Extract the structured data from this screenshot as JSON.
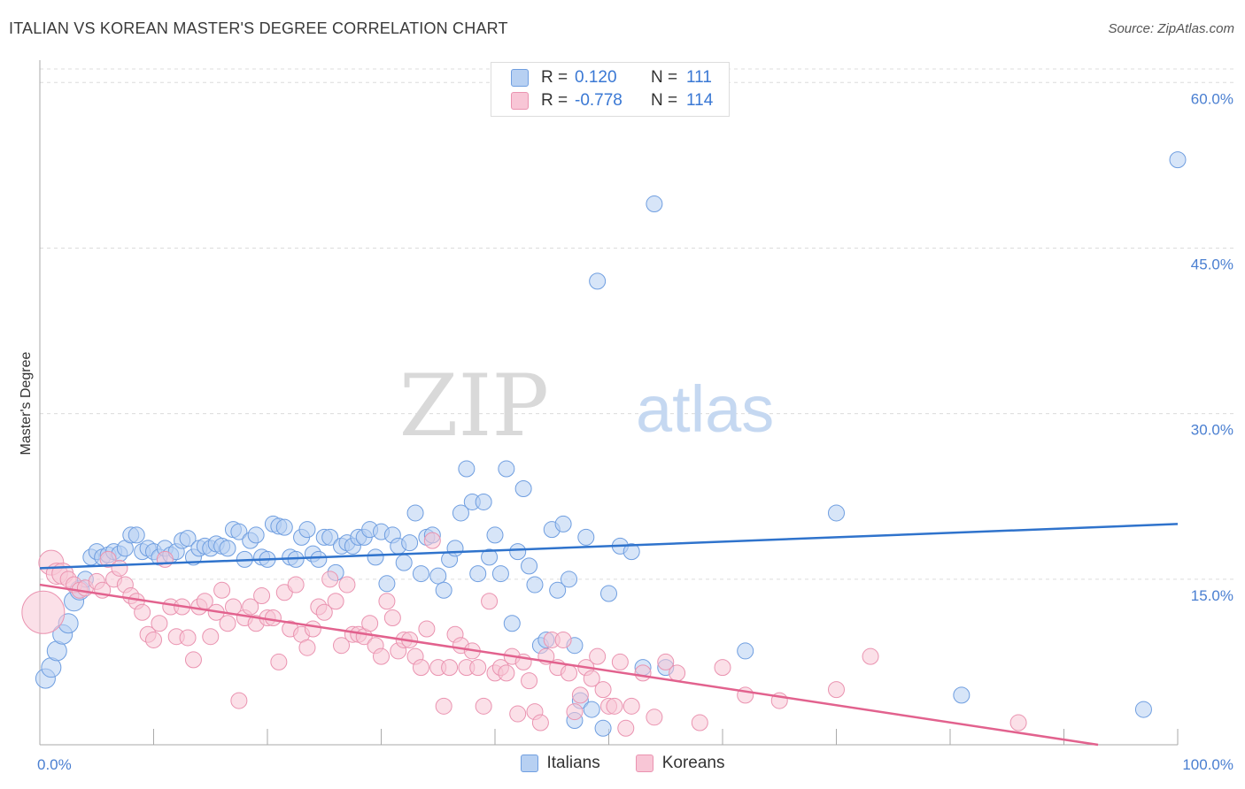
{
  "header": {
    "title": "ITALIAN VS KOREAN MASTER'S DEGREE CORRELATION CHART",
    "source": "Source: ZipAtlas.com"
  },
  "watermark": {
    "zip": "ZIP",
    "atlas": "atlas"
  },
  "legend": {
    "rows": [
      {
        "swatch_fill": "#b7d0f2",
        "swatch_stroke": "#6f9ee0",
        "r_label": "R =",
        "r_value": "0.120",
        "n_label": "N =",
        "n_value": "111"
      },
      {
        "swatch_fill": "#f8c6d6",
        "swatch_stroke": "#ea93b0",
        "r_label": "R =",
        "r_value": "-0.778",
        "n_label": "N =",
        "n_value": "114"
      }
    ]
  },
  "bottom_legend": [
    {
      "label": "Italians",
      "fill": "#b7d0f2",
      "stroke": "#6f9ee0"
    },
    {
      "label": "Koreans",
      "fill": "#f8c6d6",
      "stroke": "#ea93b0"
    }
  ],
  "chart_data": {
    "type": "scatter",
    "ylabel": "Master's Degree",
    "xlim": [
      0,
      100
    ],
    "ylim": [
      0,
      60
    ],
    "y_ticks": [
      {
        "value": 15,
        "label": "15.0%"
      },
      {
        "value": 30,
        "label": "30.0%"
      },
      {
        "value": 45,
        "label": "45.0%"
      },
      {
        "value": 60,
        "label": "60.0%"
      }
    ],
    "x_tick_labels": [
      {
        "value": 0,
        "label": "0.0%"
      },
      {
        "value": 100,
        "label": "100.0%"
      }
    ],
    "grid": true,
    "series": [
      {
        "name": "Italians",
        "color": "#6f9ee0",
        "fill": "#b7d0f2",
        "trend": {
          "x": [
            0,
            100
          ],
          "y": [
            16.0,
            20.0
          ],
          "color": "#2f73cc"
        },
        "points": [
          [
            0.5,
            6.0
          ],
          [
            1,
            7.0
          ],
          [
            1.5,
            8.5
          ],
          [
            2,
            10.0
          ],
          [
            2.5,
            11.0
          ],
          [
            3,
            13.0
          ],
          [
            3.5,
            14.0
          ],
          [
            4,
            15.0
          ],
          [
            4.5,
            17.0
          ],
          [
            5,
            17.5
          ],
          [
            5.5,
            17.0
          ],
          [
            6,
            17.2
          ],
          [
            6.5,
            17.5
          ],
          [
            7,
            17.3
          ],
          [
            7.5,
            17.8
          ],
          [
            8,
            19.0
          ],
          [
            8.5,
            19.0
          ],
          [
            9,
            17.5
          ],
          [
            9.5,
            17.8
          ],
          [
            10,
            17.5
          ],
          [
            10.5,
            17.0
          ],
          [
            11,
            17.8
          ],
          [
            11.5,
            17.2
          ],
          [
            12,
            17.5
          ],
          [
            12.5,
            18.5
          ],
          [
            13,
            18.7
          ],
          [
            13.5,
            17.0
          ],
          [
            14,
            17.8
          ],
          [
            14.5,
            18.0
          ],
          [
            15,
            17.8
          ],
          [
            15.5,
            18.2
          ],
          [
            16,
            18.0
          ],
          [
            16.5,
            17.8
          ],
          [
            17,
            19.5
          ],
          [
            17.5,
            19.3
          ],
          [
            18,
            16.8
          ],
          [
            18.5,
            18.5
          ],
          [
            19,
            19.0
          ],
          [
            19.5,
            17.0
          ],
          [
            20,
            16.8
          ],
          [
            20.5,
            20.0
          ],
          [
            21,
            19.8
          ],
          [
            21.5,
            19.7
          ],
          [
            22,
            17.0
          ],
          [
            22.5,
            16.8
          ],
          [
            23,
            18.8
          ],
          [
            23.5,
            19.5
          ],
          [
            24,
            17.3
          ],
          [
            24.5,
            16.8
          ],
          [
            25,
            18.8
          ],
          [
            25.5,
            18.8
          ],
          [
            26,
            15.6
          ],
          [
            26.5,
            18.0
          ],
          [
            27,
            18.3
          ],
          [
            27.5,
            18.0
          ],
          [
            28,
            18.8
          ],
          [
            28.5,
            18.8
          ],
          [
            29,
            19.5
          ],
          [
            29.5,
            17.0
          ],
          [
            30,
            19.3
          ],
          [
            30.5,
            14.6
          ],
          [
            31,
            19.0
          ],
          [
            31.5,
            18.0
          ],
          [
            32,
            16.5
          ],
          [
            32.5,
            18.3
          ],
          [
            33,
            21.0
          ],
          [
            33.5,
            15.5
          ],
          [
            34,
            18.8
          ],
          [
            34.5,
            19.0
          ],
          [
            35,
            15.3
          ],
          [
            35.5,
            14.0
          ],
          [
            36,
            16.8
          ],
          [
            36.5,
            17.8
          ],
          [
            37,
            21.0
          ],
          [
            37.5,
            25.0
          ],
          [
            38,
            22.0
          ],
          [
            38.5,
            15.5
          ],
          [
            39,
            22.0
          ],
          [
            39.5,
            17.0
          ],
          [
            40,
            19.0
          ],
          [
            40.5,
            15.5
          ],
          [
            41,
            25.0
          ],
          [
            41.5,
            11.0
          ],
          [
            42,
            17.5
          ],
          [
            42.5,
            23.2
          ],
          [
            43,
            16.2
          ],
          [
            43.5,
            14.5
          ],
          [
            44,
            9.0
          ],
          [
            44.5,
            9.5
          ],
          [
            45,
            19.5
          ],
          [
            45.5,
            14.0
          ],
          [
            46,
            20.0
          ],
          [
            46.5,
            15.0
          ],
          [
            47,
            9.0
          ],
          [
            47.5,
            4.0
          ],
          [
            48,
            18.8
          ],
          [
            48.5,
            3.2
          ],
          [
            49,
            42.0
          ],
          [
            49.5,
            1.5
          ],
          [
            50,
            13.7
          ],
          [
            51,
            18.0
          ],
          [
            52,
            17.5
          ],
          [
            53,
            7.0
          ],
          [
            54,
            49.0
          ],
          [
            55,
            7.0
          ],
          [
            62,
            8.5
          ],
          [
            70,
            21.0
          ],
          [
            81,
            4.5
          ],
          [
            97,
            3.2
          ],
          [
            100,
            53.0
          ],
          [
            47.0,
            2.2
          ]
        ]
      },
      {
        "name": "Koreans",
        "color": "#ea93b0",
        "fill": "#f8c6d6",
        "trend": {
          "x": [
            0,
            93
          ],
          "y": [
            14.5,
            0
          ],
          "color": "#e2628e"
        },
        "points": [
          [
            0.3,
            12.0
          ],
          [
            1,
            16.5
          ],
          [
            1.5,
            15.5
          ],
          [
            2,
            15.5
          ],
          [
            2.5,
            15.0
          ],
          [
            3,
            14.5
          ],
          [
            3.5,
            14.0
          ],
          [
            4,
            14.2
          ],
          [
            5,
            14.8
          ],
          [
            5.5,
            14.0
          ],
          [
            6,
            16.8
          ],
          [
            6.5,
            15.0
          ],
          [
            7,
            16.0
          ],
          [
            7.5,
            14.5
          ],
          [
            8,
            13.5
          ],
          [
            8.5,
            13.0
          ],
          [
            9,
            12.0
          ],
          [
            9.5,
            10.0
          ],
          [
            10,
            9.5
          ],
          [
            10.5,
            11.0
          ],
          [
            11,
            16.8
          ],
          [
            11.5,
            12.5
          ],
          [
            12,
            9.8
          ],
          [
            12.5,
            12.5
          ],
          [
            13,
            9.7
          ],
          [
            13.5,
            7.7
          ],
          [
            14,
            12.5
          ],
          [
            14.5,
            13.0
          ],
          [
            15,
            9.8
          ],
          [
            15.5,
            12.0
          ],
          [
            16,
            14.0
          ],
          [
            16.5,
            11.0
          ],
          [
            17,
            12.5
          ],
          [
            17.5,
            4.0
          ],
          [
            18,
            11.5
          ],
          [
            18.5,
            12.5
          ],
          [
            19,
            11.0
          ],
          [
            19.5,
            13.5
          ],
          [
            20,
            11.5
          ],
          [
            20.5,
            11.5
          ],
          [
            21,
            7.5
          ],
          [
            21.5,
            13.8
          ],
          [
            22,
            10.5
          ],
          [
            22.5,
            14.5
          ],
          [
            23,
            10.0
          ],
          [
            23.5,
            8.8
          ],
          [
            24,
            10.5
          ],
          [
            24.5,
            12.5
          ],
          [
            25,
            12.0
          ],
          [
            25.5,
            15.0
          ],
          [
            26,
            13.0
          ],
          [
            26.5,
            9.0
          ],
          [
            27,
            14.5
          ],
          [
            27.5,
            10.0
          ],
          [
            28,
            10.0
          ],
          [
            28.5,
            9.8
          ],
          [
            29,
            11.0
          ],
          [
            29.5,
            9.0
          ],
          [
            30,
            8.0
          ],
          [
            30.5,
            13.0
          ],
          [
            31,
            11.5
          ],
          [
            31.5,
            8.5
          ],
          [
            32,
            9.5
          ],
          [
            32.5,
            9.5
          ],
          [
            33,
            8.0
          ],
          [
            33.5,
            7.0
          ],
          [
            34,
            10.5
          ],
          [
            34.5,
            18.5
          ],
          [
            35,
            7.0
          ],
          [
            35.5,
            3.5
          ],
          [
            36,
            7.0
          ],
          [
            36.5,
            10.0
          ],
          [
            37,
            9.0
          ],
          [
            37.5,
            7.0
          ],
          [
            38,
            8.5
          ],
          [
            38.5,
            7.0
          ],
          [
            39,
            3.5
          ],
          [
            39.5,
            13.0
          ],
          [
            40,
            6.5
          ],
          [
            40.5,
            7.0
          ],
          [
            41,
            6.5
          ],
          [
            41.5,
            8.0
          ],
          [
            42,
            2.8
          ],
          [
            42.5,
            7.5
          ],
          [
            43,
            5.8
          ],
          [
            43.5,
            3.0
          ],
          [
            44,
            2.0
          ],
          [
            44.5,
            8.0
          ],
          [
            45,
            9.5
          ],
          [
            45.5,
            7.0
          ],
          [
            46,
            9.5
          ],
          [
            46.5,
            6.5
          ],
          [
            47,
            3.0
          ],
          [
            47.5,
            4.5
          ],
          [
            48,
            7.0
          ],
          [
            48.5,
            6.0
          ],
          [
            49,
            8.0
          ],
          [
            49.5,
            5.0
          ],
          [
            50,
            3.5
          ],
          [
            50.5,
            3.5
          ],
          [
            51,
            7.5
          ],
          [
            51.5,
            1.5
          ],
          [
            52,
            3.5
          ],
          [
            53,
            6.5
          ],
          [
            54,
            2.5
          ],
          [
            55,
            7.5
          ],
          [
            56,
            6.5
          ],
          [
            58,
            2.0
          ],
          [
            60,
            7.0
          ],
          [
            62,
            4.5
          ],
          [
            65,
            4.0
          ],
          [
            70,
            5.0
          ],
          [
            73,
            8.0
          ],
          [
            86,
            2.0
          ]
        ]
      }
    ]
  }
}
